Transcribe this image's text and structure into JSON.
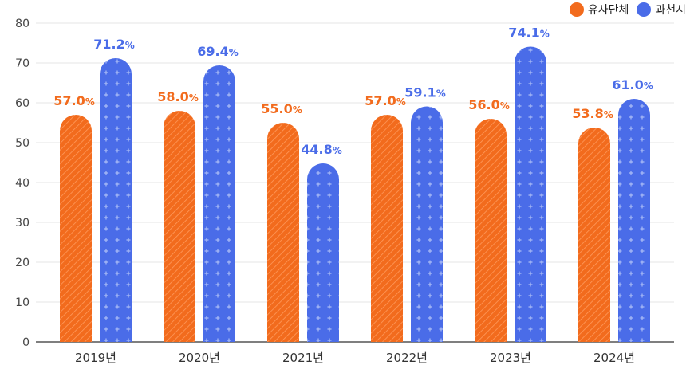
{
  "chart_data": {
    "type": "bar",
    "categories": [
      "2019년",
      "2020년",
      "2021년",
      "2022년",
      "2023년",
      "2024년"
    ],
    "series": [
      {
        "name": "유사단체",
        "values": [
          57.0,
          58.0,
          55.0,
          57.0,
          56.0,
          53.8
        ],
        "color": "#F26B1D"
      },
      {
        "name": "과천시",
        "values": [
          71.2,
          69.4,
          44.8,
          59.1,
          74.1,
          61.0
        ],
        "color": "#4A6CE8"
      }
    ],
    "ylim": [
      0,
      80
    ],
    "yticks": [
      "0",
      "10",
      "20",
      "30",
      "40",
      "50",
      "60",
      "70",
      "80"
    ],
    "value_unit": "%",
    "grid": true,
    "legend": "top-right"
  }
}
